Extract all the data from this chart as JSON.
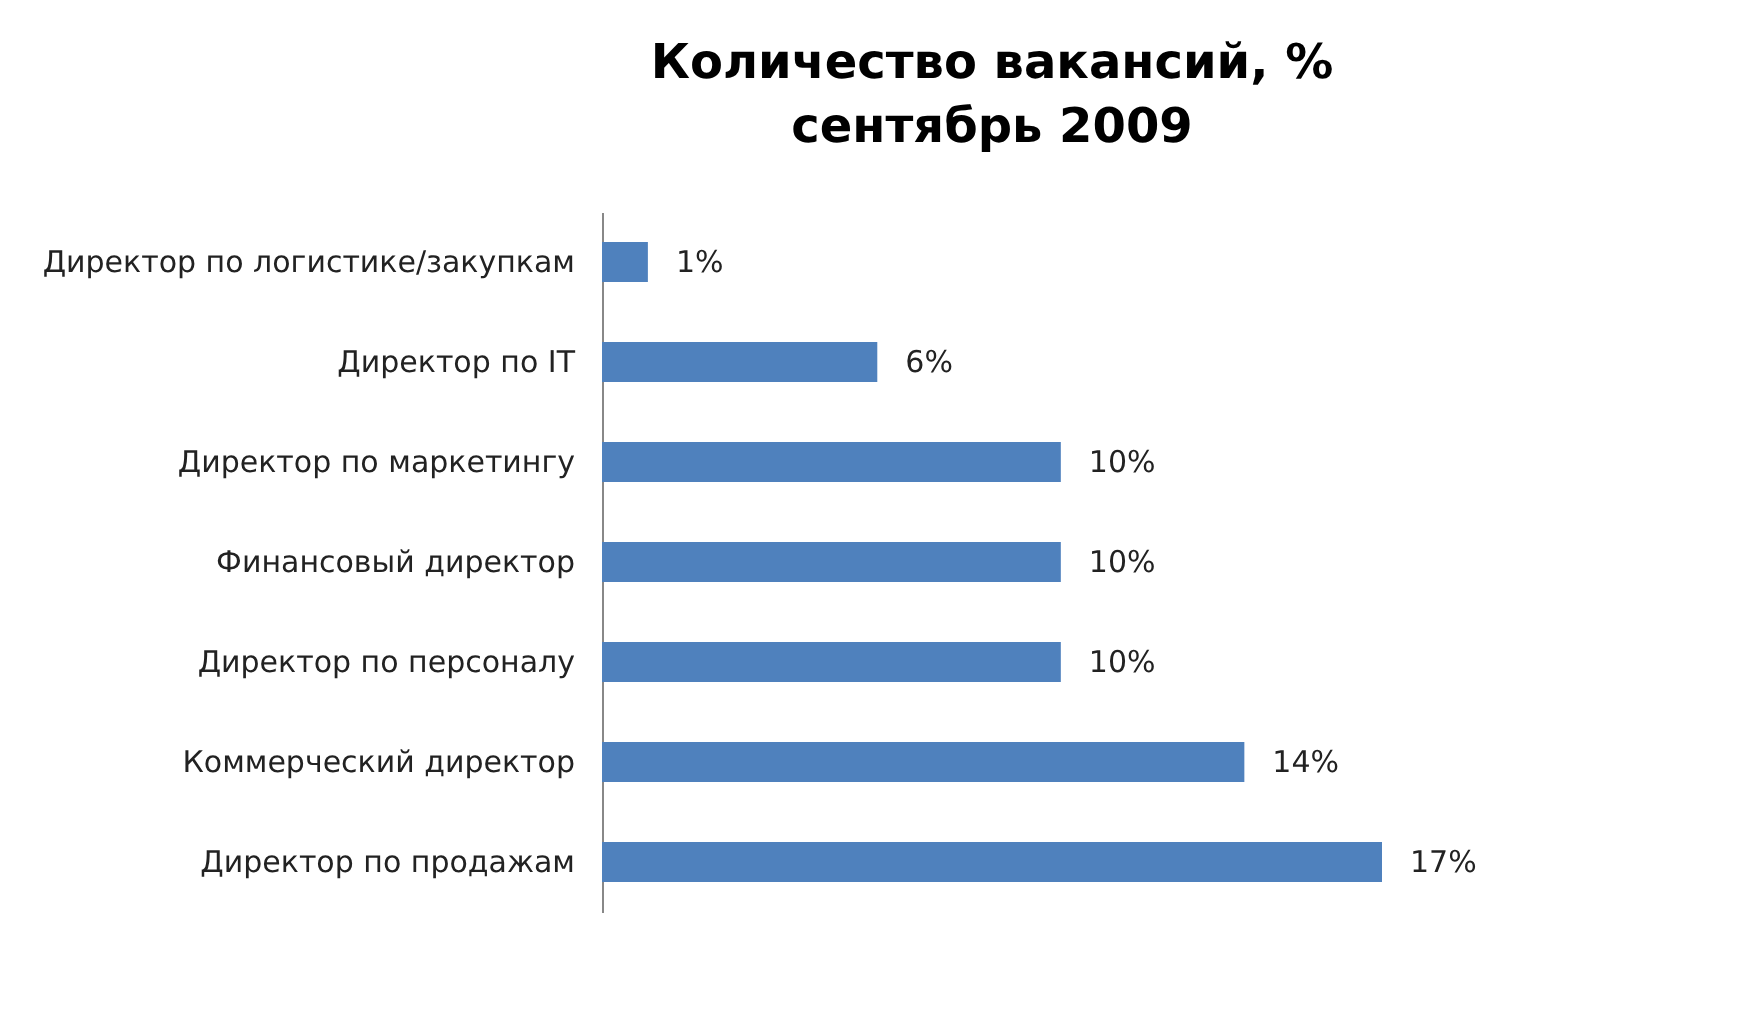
{
  "chart_data": {
    "type": "bar",
    "orientation": "horizontal",
    "title": "Количество вакансий, %",
    "subtitle": "сентябрь 2009",
    "categories": [
      "Директор по логистике/закупкам",
      "Директор по IT",
      "Директор по маркетингу",
      "Финансовый директор",
      "Директор по персоналу",
      "Коммерческий директор",
      "Директор по продажам"
    ],
    "values": [
      1,
      6,
      10,
      10,
      10,
      14,
      17
    ],
    "value_labels": [
      "1%",
      "6%",
      "10%",
      "10%",
      "10%",
      "14%",
      "17%"
    ],
    "color": "#4f81bd"
  }
}
